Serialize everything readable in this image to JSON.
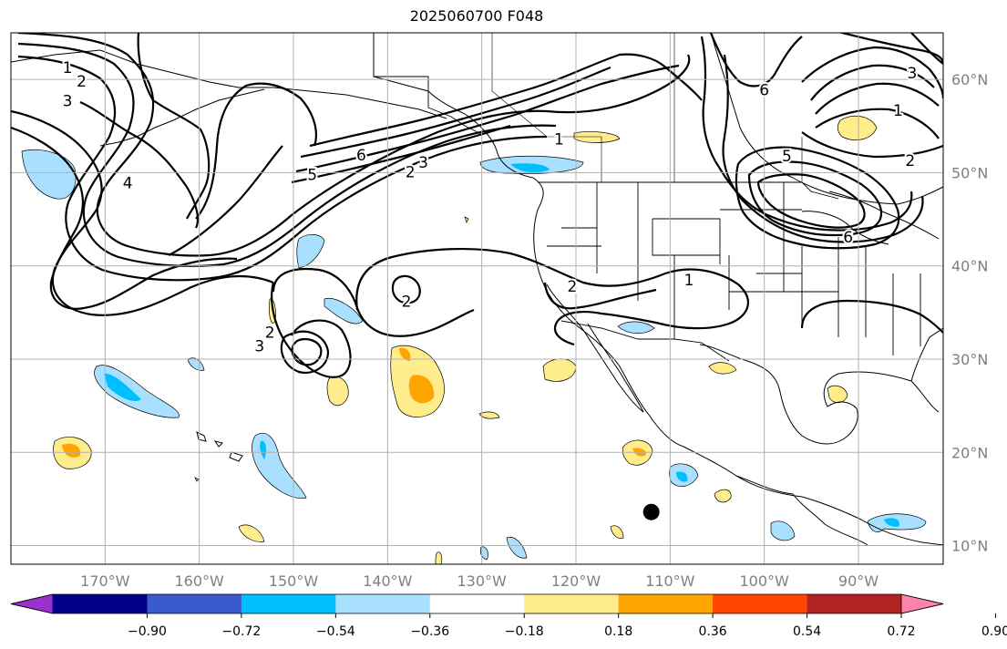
{
  "title": "2025060700 F048",
  "map": {
    "lon_range": [
      -180,
      -81
    ],
    "lat_range": [
      8,
      65
    ],
    "grid": true,
    "lon_ticks": [
      {
        "value": -170,
        "label": "170°W"
      },
      {
        "value": -160,
        "label": "160°W"
      },
      {
        "value": -150,
        "label": "150°W"
      },
      {
        "value": -140,
        "label": "140°W"
      },
      {
        "value": -130,
        "label": "130°W"
      },
      {
        "value": -120,
        "label": "120°W"
      },
      {
        "value": -110,
        "label": "110°W"
      },
      {
        "value": -100,
        "label": "100°W"
      },
      {
        "value": -90,
        "label": "90°W"
      }
    ],
    "lat_ticks": [
      {
        "value": 10,
        "label": "10°N"
      },
      {
        "value": 20,
        "label": "20°N"
      },
      {
        "value": 30,
        "label": "30°N"
      },
      {
        "value": 40,
        "label": "40°N"
      },
      {
        "value": 50,
        "label": "50°N"
      },
      {
        "value": 60,
        "label": "60°N"
      }
    ],
    "marker": {
      "lon": -112,
      "lat": 13.6
    },
    "contour_labels": [
      {
        "text": "1",
        "lon": -174,
        "lat": 61.3
      },
      {
        "text": "2",
        "lon": -172.5,
        "lat": 59.8
      },
      {
        "text": "3",
        "lon": -174,
        "lat": 57.7
      },
      {
        "text": "4",
        "lon": -167.6,
        "lat": 48.9
      },
      {
        "text": "5",
        "lon": -148,
        "lat": 49.8
      },
      {
        "text": "6",
        "lon": -142.8,
        "lat": 51.9
      },
      {
        "text": "2",
        "lon": -137.6,
        "lat": 50.1
      },
      {
        "text": "3",
        "lon": -136.2,
        "lat": 51.1
      },
      {
        "text": "1",
        "lon": -121.8,
        "lat": 53.6
      },
      {
        "text": "2",
        "lon": -138,
        "lat": 36.2
      },
      {
        "text": "2",
        "lon": -152.5,
        "lat": 32.9
      },
      {
        "text": "3",
        "lon": -153.6,
        "lat": 31.4
      },
      {
        "text": "2",
        "lon": -120.4,
        "lat": 37.8
      },
      {
        "text": "1",
        "lon": -108,
        "lat": 38.5
      },
      {
        "text": "6",
        "lon": -100,
        "lat": 58.9
      },
      {
        "text": "5",
        "lon": -97.6,
        "lat": 51.8
      },
      {
        "text": "1",
        "lon": -85.8,
        "lat": 56.7
      },
      {
        "text": "2",
        "lon": -84.5,
        "lat": 51.3
      },
      {
        "text": "6",
        "lon": -91.1,
        "lat": 43.1
      },
      {
        "text": "3",
        "lon": -84.3,
        "lat": 60.7
      }
    ]
  },
  "colorbar": {
    "extend": "both",
    "colors": [
      "#9932cc",
      "#00008b",
      "#3a5bcc",
      "#00bfff",
      "#aae0ff",
      "#ffffff",
      "#ffec8b",
      "#ffa500",
      "#ff4500",
      "#b22222",
      "#ff82ab"
    ],
    "tick_labels": [
      "−0.90",
      "−0.72",
      "−0.54",
      "−0.36",
      "−0.18",
      "0.18",
      "0.36",
      "0.54",
      "0.72",
      "0.90"
    ]
  },
  "colors": {
    "positive_1": "#ffec8b",
    "positive_2": "#ffa500",
    "negative_1": "#aae0ff",
    "negative_2": "#00bfff",
    "grid": "#b0b0b0",
    "tick_text": "#808080"
  }
}
